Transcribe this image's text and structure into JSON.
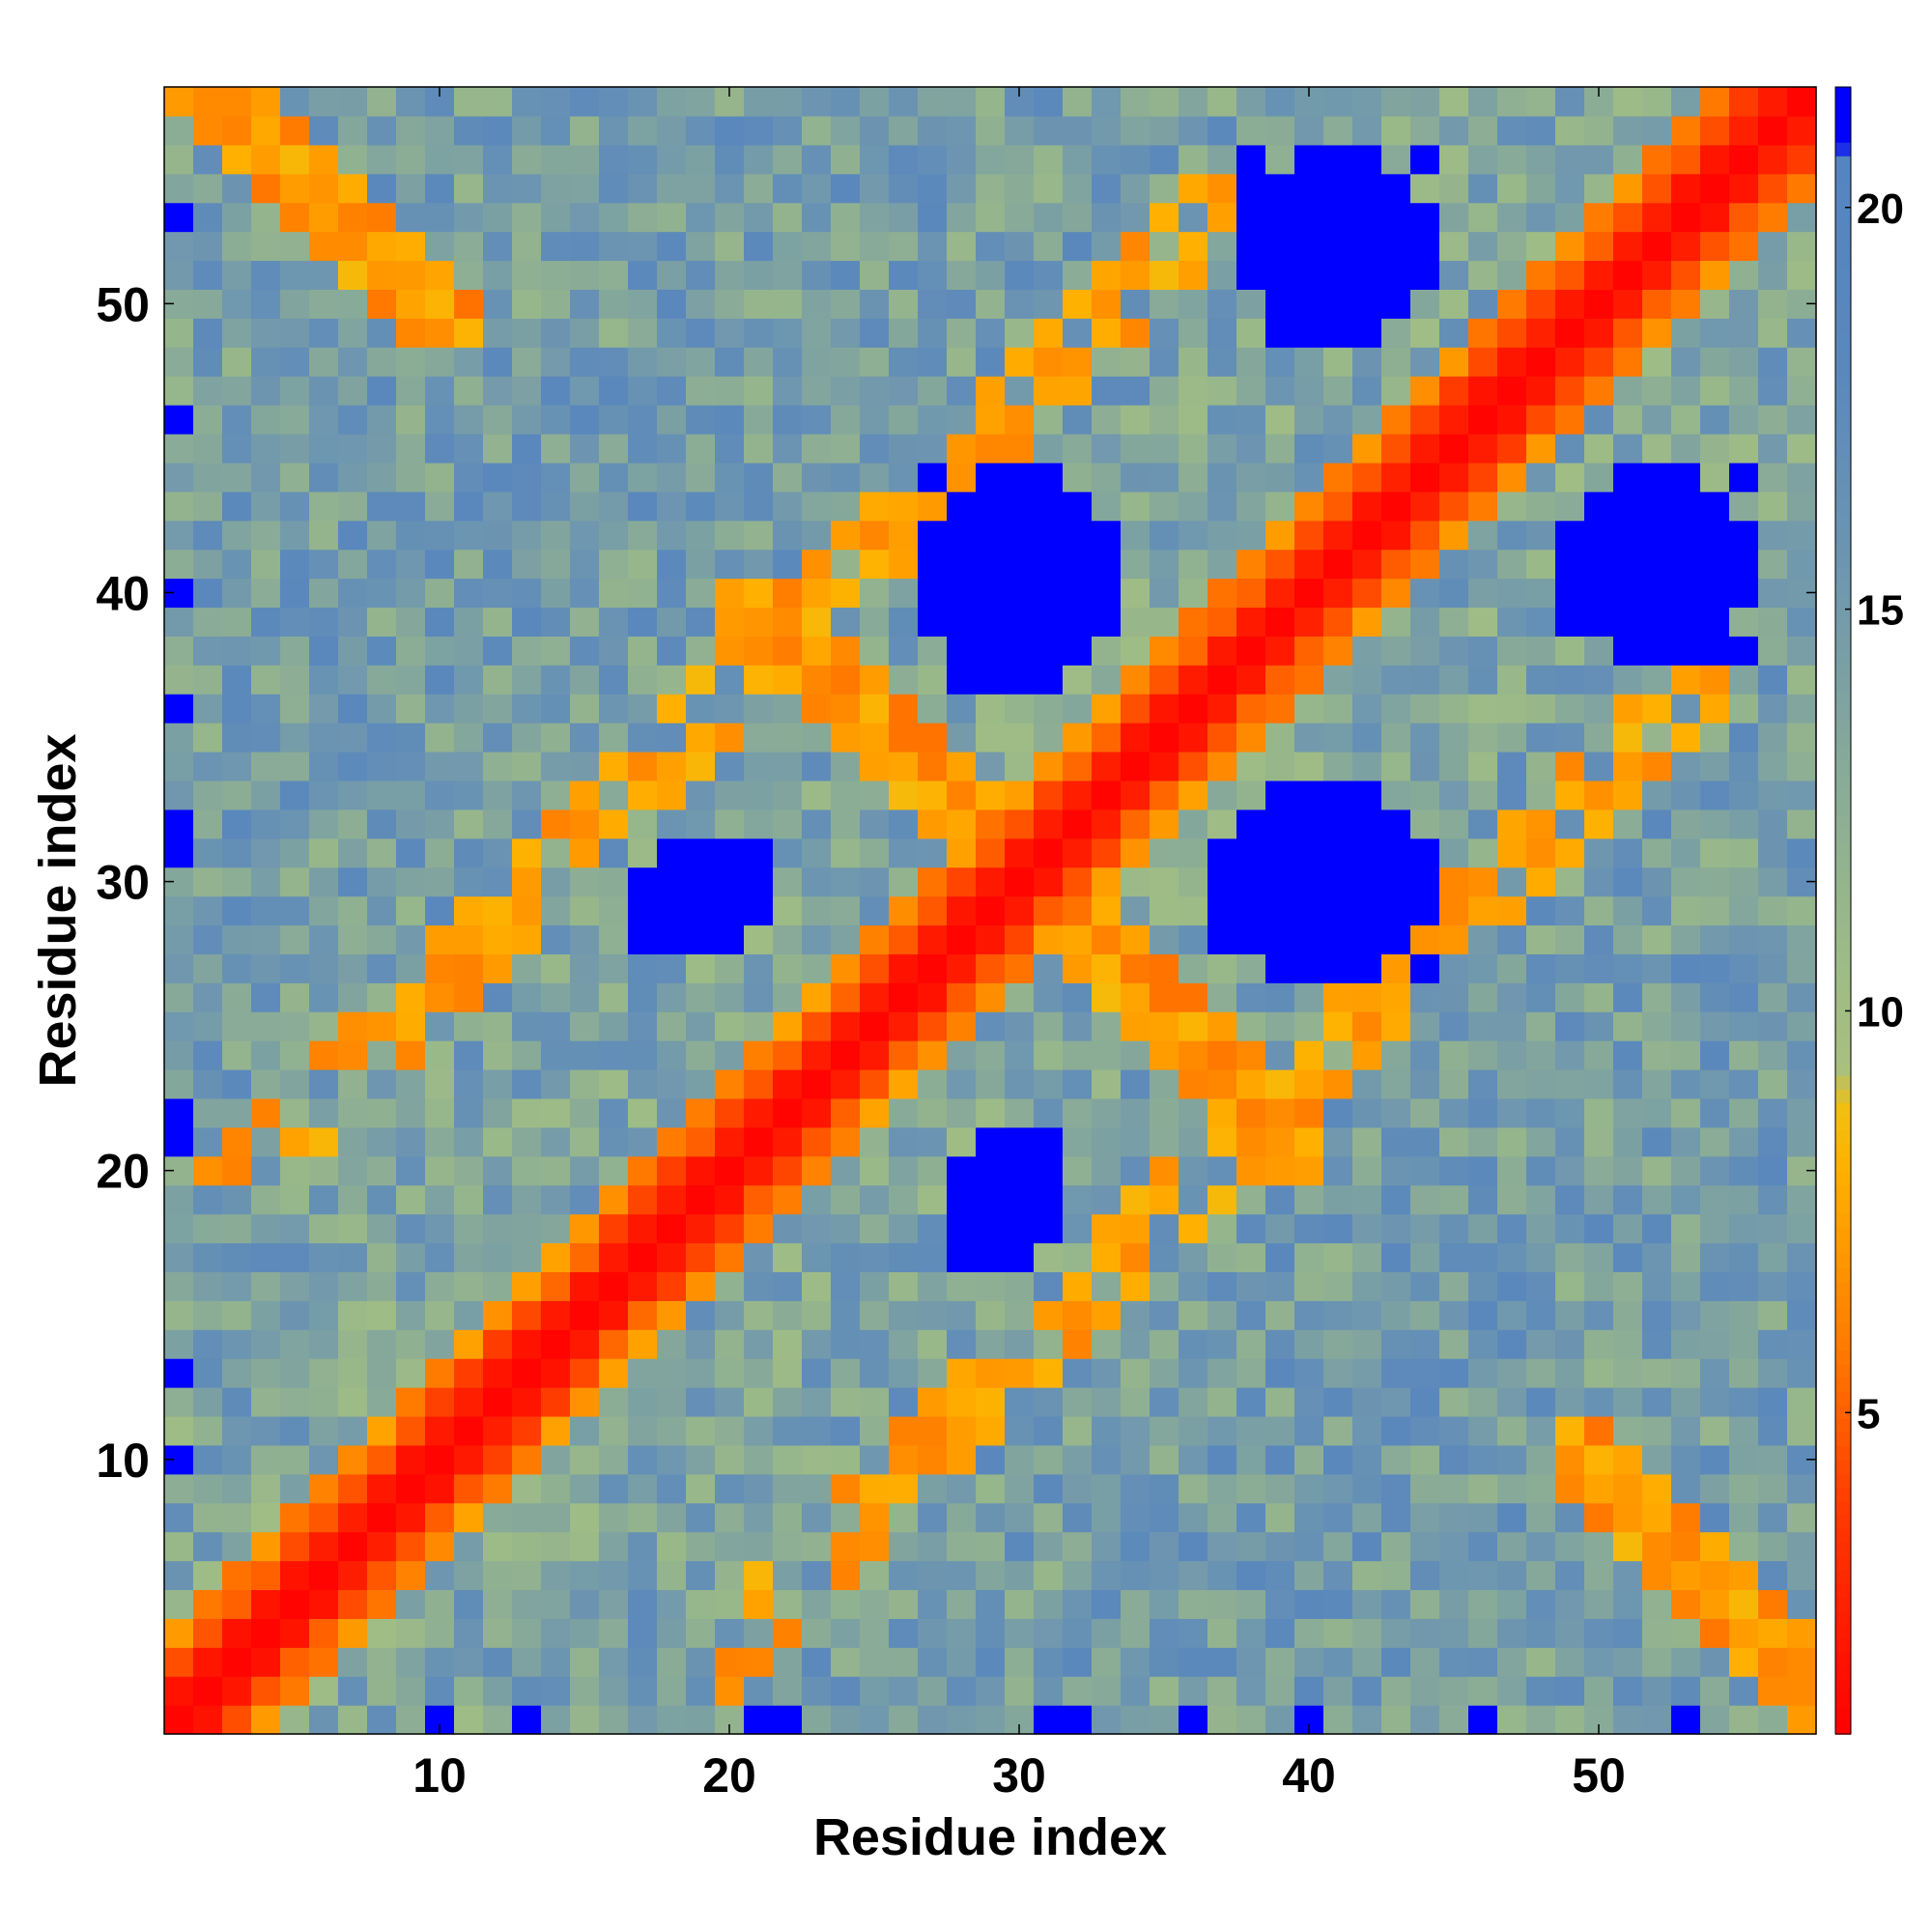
{
  "chart_data": {
    "type": "heatmap",
    "title": "",
    "xlabel": "Residue index",
    "ylabel": "Residue index",
    "n_residues": 57,
    "xlim": [
      0.5,
      57.5
    ],
    "ylim": [
      0.5,
      57.5
    ],
    "x_ticks": [
      10,
      20,
      30,
      40,
      50
    ],
    "y_ticks": [
      10,
      20,
      30,
      40,
      50
    ],
    "grid": false,
    "legend": "none",
    "colorbar": {
      "position": "right",
      "range": [
        1,
        21.5
      ],
      "ticks": [
        5,
        10,
        15,
        20
      ],
      "stops": [
        {
          "value": 1.0,
          "color": "#ff0000"
        },
        {
          "value": 3.8,
          "color": "#ff3a00"
        },
        {
          "value": 5.8,
          "color": "#ff7a00"
        },
        {
          "value": 8.0,
          "color": "#ffb000"
        },
        {
          "value": 8.8,
          "color": "#f0c010"
        },
        {
          "value": 9.3,
          "color": "#a8c080"
        },
        {
          "value": 10.5,
          "color": "#9ebc86"
        },
        {
          "value": 13.0,
          "color": "#88aa98"
        },
        {
          "value": 15.5,
          "color": "#6e96b0"
        },
        {
          "value": 18.0,
          "color": "#5a88bc"
        },
        {
          "value": 20.6,
          "color": "#5585c0"
        },
        {
          "value": 20.8,
          "color": "#0000ff"
        },
        {
          "value": 21.5,
          "color": "#0000ff"
        }
      ]
    },
    "matrix_description": "Pairwise distance map between residues; values are symmetric. Diagonal and near-diagonal contacts are low (red/orange); distant pairs are high (blue).",
    "blue_regions": [
      {
        "x": [
          27,
          33
        ],
        "y": [
          37,
          44
        ]
      },
      {
        "x": [
          38,
          44
        ],
        "y": [
          27,
          33
        ]
      },
      {
        "x": [
          17,
          21
        ],
        "y": [
          28,
          31
        ]
      },
      {
        "x": [
          28,
          31
        ],
        "y": [
          17,
          21
        ]
      },
      {
        "x": [
          38,
          44
        ],
        "y": [
          49,
          55
        ]
      },
      {
        "x": [
          49,
          55
        ],
        "y": [
          38,
          44
        ]
      }
    ],
    "orange_bands": [
      {
        "x": [
          20,
          37
        ],
        "y": [
          40,
          23
        ]
      },
      {
        "x": [
          23,
          40
        ],
        "y": [
          20,
          37
        ]
      },
      {
        "x": [
          2,
          11
        ],
        "y": [
          57,
          50
        ]
      },
      {
        "x": [
          50,
          57
        ],
        "y": [
          2,
          11
        ]
      }
    ]
  }
}
